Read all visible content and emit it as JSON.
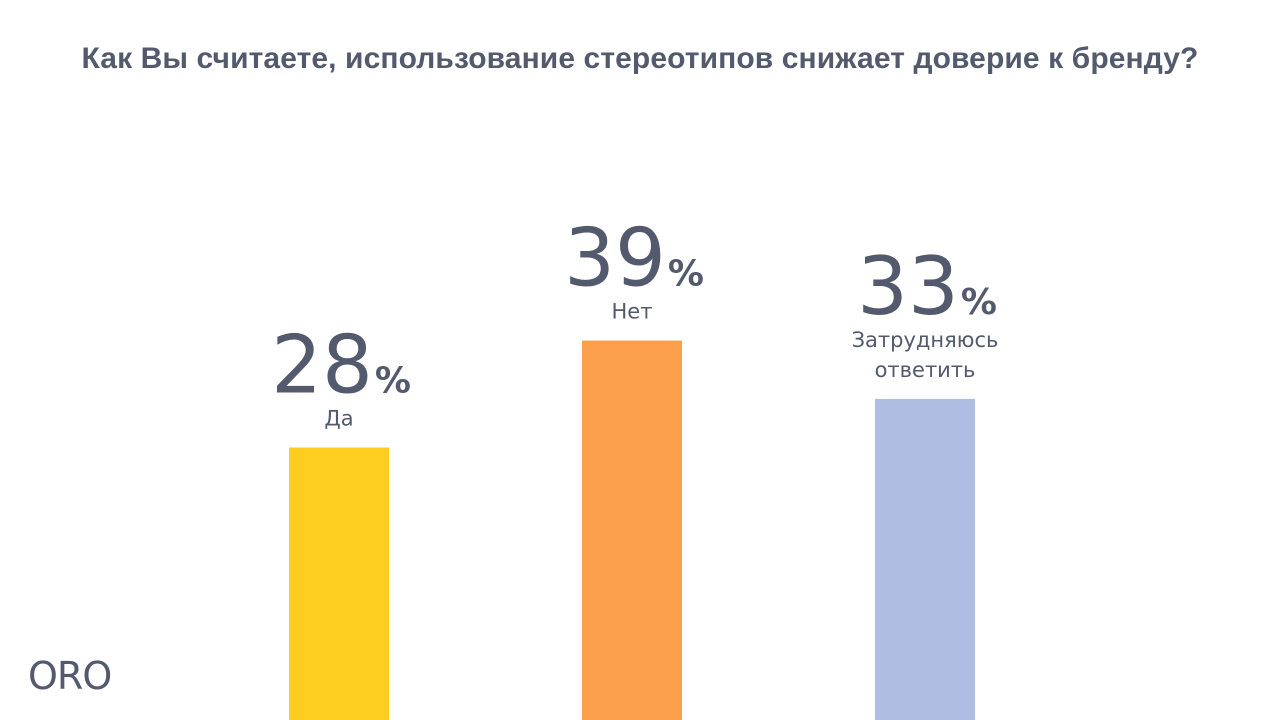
{
  "logo_text": "ORO",
  "chart_data": {
    "type": "bar",
    "title": "Как Вы считаете, использование стереотипов снижает доверие к бренду?",
    "categories": [
      "Да",
      "Нет",
      "Затрудняюсь ответить"
    ],
    "values": [
      28,
      39,
      33
    ],
    "value_suffix": "%",
    "colors": [
      "#fdcd1f",
      "#fda04b",
      "#b0bde3"
    ],
    "xlabel": "",
    "ylabel": "",
    "grid": false,
    "legend": "none"
  }
}
